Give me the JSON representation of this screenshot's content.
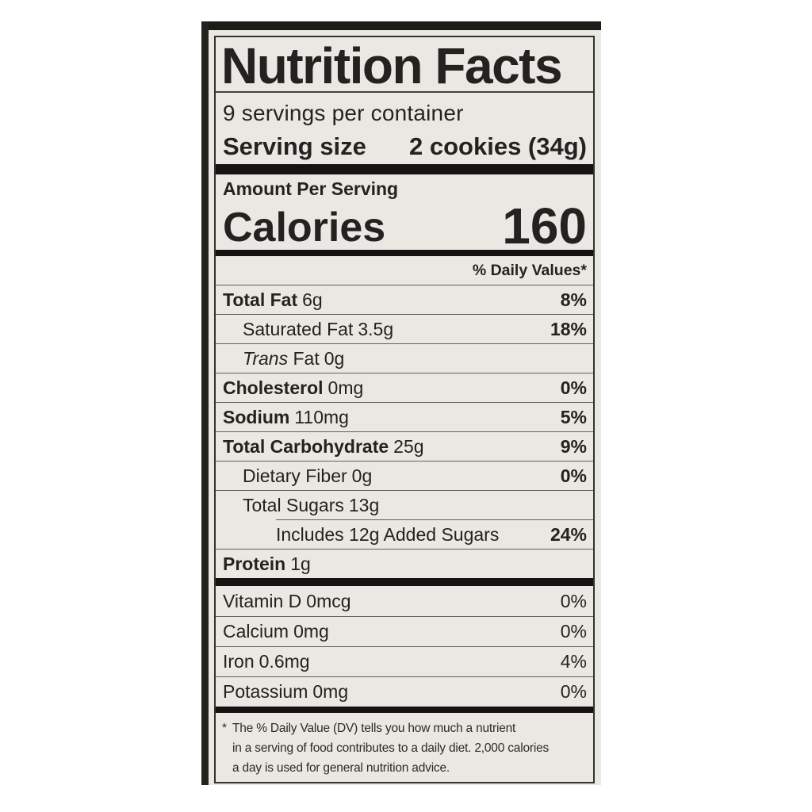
{
  "label": {
    "title": "Nutrition Facts",
    "servings_per_container": "9 servings per container",
    "serving_size_label": "Serving size",
    "serving_size_value": "2 cookies (34g)",
    "amount_per_serving": "Amount Per Serving",
    "calories_label": "Calories",
    "calories_value": "160",
    "daily_value_header": "% Daily Values*",
    "nutrients": [
      {
        "name": "Total Fat",
        "amount": "6g",
        "dv": "8%",
        "indent": 0,
        "bold": true,
        "dv_bold": true,
        "sep": "full"
      },
      {
        "name": "Saturated Fat",
        "amount": "3.5g",
        "dv": "18%",
        "indent": 1,
        "bold": false,
        "dv_bold": true,
        "sep": "full"
      },
      {
        "name_italic": "Trans",
        "name": "Fat",
        "amount": "0g",
        "dv": "",
        "indent": 1,
        "bold": false,
        "dv_bold": false,
        "sep": "full"
      },
      {
        "name": "Cholesterol",
        "amount": "0mg",
        "dv": "0%",
        "indent": 0,
        "bold": true,
        "dv_bold": true,
        "sep": "full"
      },
      {
        "name": "Sodium",
        "amount": "110mg",
        "dv": "5%",
        "indent": 0,
        "bold": true,
        "dv_bold": true,
        "sep": "full"
      },
      {
        "name": "Total Carbohydrate",
        "amount": "25g",
        "dv": "9%",
        "indent": 0,
        "bold": true,
        "dv_bold": true,
        "sep": "full"
      },
      {
        "name": "Dietary Fiber",
        "amount": "0g",
        "dv": "0%",
        "indent": 1,
        "bold": false,
        "dv_bold": true,
        "sep": "full"
      },
      {
        "name": "Total Sugars",
        "amount": "13g",
        "dv": "",
        "indent": 1,
        "bold": false,
        "dv_bold": false,
        "sep": "full"
      },
      {
        "name": "Includes 12g Added Sugars",
        "amount": "",
        "dv": "24%",
        "indent": 2,
        "bold": false,
        "dv_bold": true,
        "sep": "indent"
      },
      {
        "name": "Protein",
        "amount": "1g",
        "dv": "",
        "indent": 0,
        "bold": true,
        "dv_bold": false,
        "sep": "full"
      }
    ],
    "micronutrients": [
      {
        "name": "Vitamin D",
        "amount": "0mcg",
        "dv": "0%",
        "sep": "none"
      },
      {
        "name": "Calcium",
        "amount": "0mg",
        "dv": "0%",
        "sep": "full"
      },
      {
        "name": "Iron",
        "amount": "0.6mg",
        "dv": "4%",
        "sep": "full"
      },
      {
        "name": "Potassium",
        "amount": "0mg",
        "dv": "0%",
        "sep": "full"
      }
    ],
    "footnote_marker": "*",
    "footnote_lines": [
      "The % Daily Value (DV) tells you how much a nutrient",
      "in a serving of food contributes to a daily diet. 2,000 calories",
      "a day is used for general nutrition advice."
    ]
  },
  "colors": {
    "paper": "#eae8e3",
    "ink": "#232220",
    "line": "#64615c",
    "bar": "#151412",
    "border": "#34322e",
    "page-bg": "#ffffff"
  }
}
